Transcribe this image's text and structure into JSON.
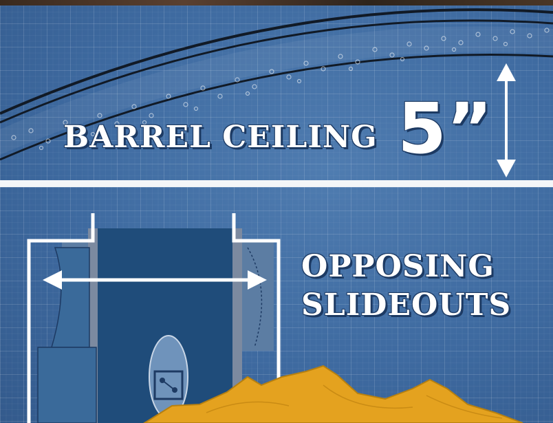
{
  "barrel": {
    "label": "BARREL CEILING",
    "size": "5”"
  },
  "slideouts": {
    "line1": "OPPOSING",
    "line2": "SLIDEOUTS"
  },
  "colors": {
    "blueprint": "#3e6aa0",
    "line": "#ffffff",
    "dark_outline": "#1d3a63",
    "mountain": "#e4a21f"
  }
}
